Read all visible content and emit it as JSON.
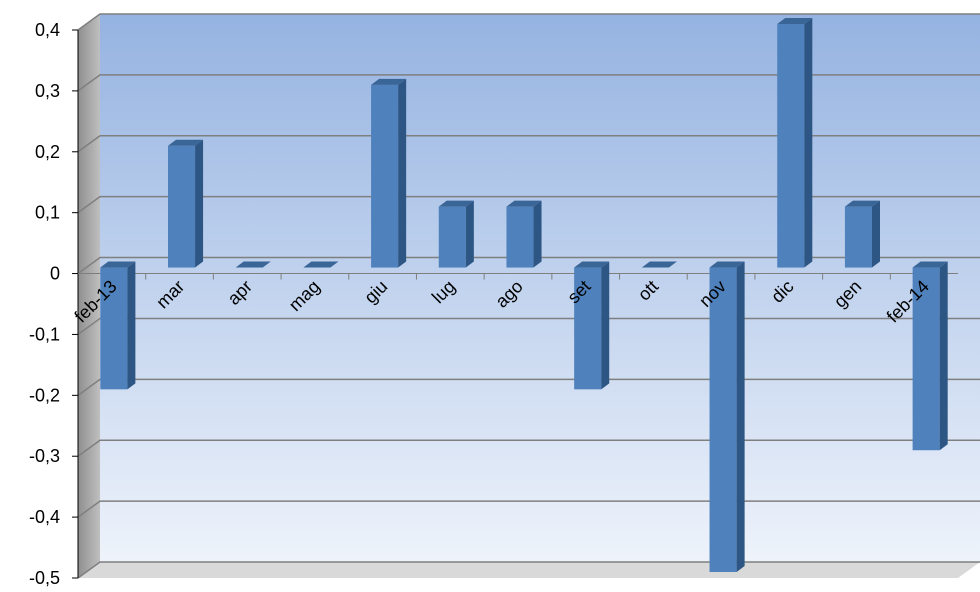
{
  "chart_data": {
    "type": "bar",
    "categories": [
      "feb-13",
      "mar",
      "apr",
      "mag",
      "giu",
      "lug",
      "ago",
      "set",
      "ott",
      "nov",
      "dic",
      "gen",
      "feb-14"
    ],
    "values": [
      -0.2,
      0.2,
      0,
      0,
      0.3,
      0.1,
      0.1,
      -0.2,
      0,
      -0.5,
      0.4,
      0.1,
      -0.3
    ],
    "ylim": [
      -0.5,
      0.4
    ],
    "yticks": [
      "0,4",
      "0,3",
      "0,2",
      "0,1",
      "0",
      "-0,1",
      "-0,2",
      "-0,3",
      "-0,4",
      "-0,5"
    ],
    "grid": true,
    "legend": "none",
    "colors": {
      "bar_front": "#4F81BD",
      "bar_side": "#2D5684",
      "bar_top": "#3A6597",
      "gridline": "#7F7F7F",
      "wall_top": "#95B3E1",
      "wall_bottom": "#EEF3FB"
    }
  }
}
